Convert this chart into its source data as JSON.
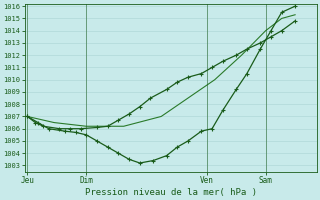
{
  "background_color": "#c8eaea",
  "grid_color": "#b0d8d8",
  "line_dark": "#1a5c1a",
  "line_medium": "#2a7a2a",
  "xlabel": "Pression niveau de la mer( hPa )",
  "ylim": [
    1003,
    1016
  ],
  "yticks": [
    1003,
    1004,
    1005,
    1006,
    1007,
    1008,
    1009,
    1010,
    1011,
    1012,
    1013,
    1014,
    1015,
    1016
  ],
  "xtick_labels": [
    "Jeu",
    "Dim",
    "Ven",
    "Sam"
  ],
  "xtick_pos": [
    0.0,
    0.22,
    0.67,
    0.89
  ],
  "total_width": 1.0,
  "s1_x": [
    0.0,
    0.03,
    0.06,
    0.12,
    0.16,
    0.2,
    0.26,
    0.3,
    0.34,
    0.38,
    0.42,
    0.46,
    0.52,
    0.56,
    0.6,
    0.65,
    0.69,
    0.73,
    0.78,
    0.82,
    0.87,
    0.91,
    0.95,
    1.0
  ],
  "s1_y": [
    1007.0,
    1006.5,
    1006.2,
    1006.0,
    1006.0,
    1006.0,
    1006.1,
    1006.2,
    1006.7,
    1007.2,
    1007.8,
    1008.5,
    1009.2,
    1009.8,
    1010.2,
    1010.5,
    1011.0,
    1011.5,
    1012.0,
    1012.5,
    1013.0,
    1013.5,
    1014.0,
    1014.8
  ],
  "s2_x": [
    0.0,
    0.04,
    0.08,
    0.14,
    0.18,
    0.22,
    0.26,
    0.3,
    0.34,
    0.38,
    0.42,
    0.47,
    0.52,
    0.56,
    0.6,
    0.65,
    0.69,
    0.73,
    0.78,
    0.82,
    0.87,
    0.91,
    0.95,
    1.0
  ],
  "s2_y": [
    1007.0,
    1006.5,
    1006.0,
    1005.8,
    1005.7,
    1005.5,
    1005.0,
    1004.5,
    1004.0,
    1003.5,
    1003.2,
    1003.4,
    1003.8,
    1004.5,
    1005.0,
    1005.8,
    1006.0,
    1007.5,
    1009.2,
    1010.5,
    1012.5,
    1014.0,
    1015.5,
    1016.0
  ],
  "s3_x": [
    0.0,
    0.1,
    0.22,
    0.36,
    0.5,
    0.6,
    0.7,
    0.8,
    0.89,
    0.95,
    1.0
  ],
  "s3_y": [
    1007.0,
    1006.5,
    1006.2,
    1006.2,
    1007.0,
    1008.5,
    1010.0,
    1012.0,
    1014.0,
    1015.0,
    1015.3
  ]
}
